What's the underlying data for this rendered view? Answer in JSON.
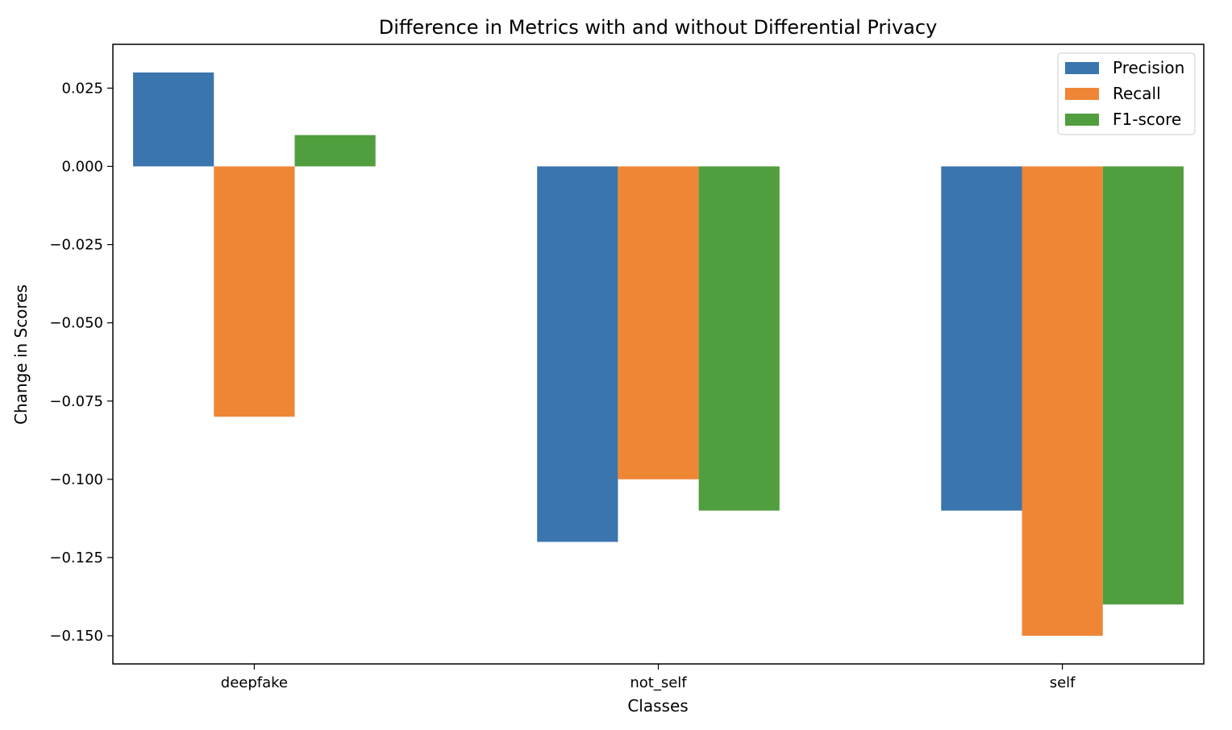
{
  "chart_data": {
    "type": "bar",
    "title": "Difference in Metrics with and without Differential Privacy",
    "xlabel": "Classes",
    "ylabel": "Change in Scores",
    "categories": [
      "deepfake",
      "not_self",
      "self"
    ],
    "series": [
      {
        "name": "Precision",
        "color": "#3a75ae",
        "values": [
          0.03,
          -0.12,
          -0.11
        ]
      },
      {
        "name": "Recall",
        "color": "#ef8636",
        "values": [
          -0.08,
          -0.1,
          -0.15
        ]
      },
      {
        "name": "F1-score",
        "color": "#519e3e",
        "values": [
          0.01,
          -0.11,
          -0.14
        ]
      }
    ],
    "ylim": [
      -0.159,
      0.039
    ],
    "yticks": [
      0.025,
      0.0,
      -0.025,
      -0.05,
      -0.075,
      -0.1,
      -0.125,
      -0.15
    ],
    "ytick_labels": [
      "0.025",
      "0.000",
      "−0.025",
      "−0.050",
      "−0.075",
      "−0.100",
      "−0.125",
      "−0.150"
    ],
    "grid": false,
    "legend_position": "top-right"
  }
}
